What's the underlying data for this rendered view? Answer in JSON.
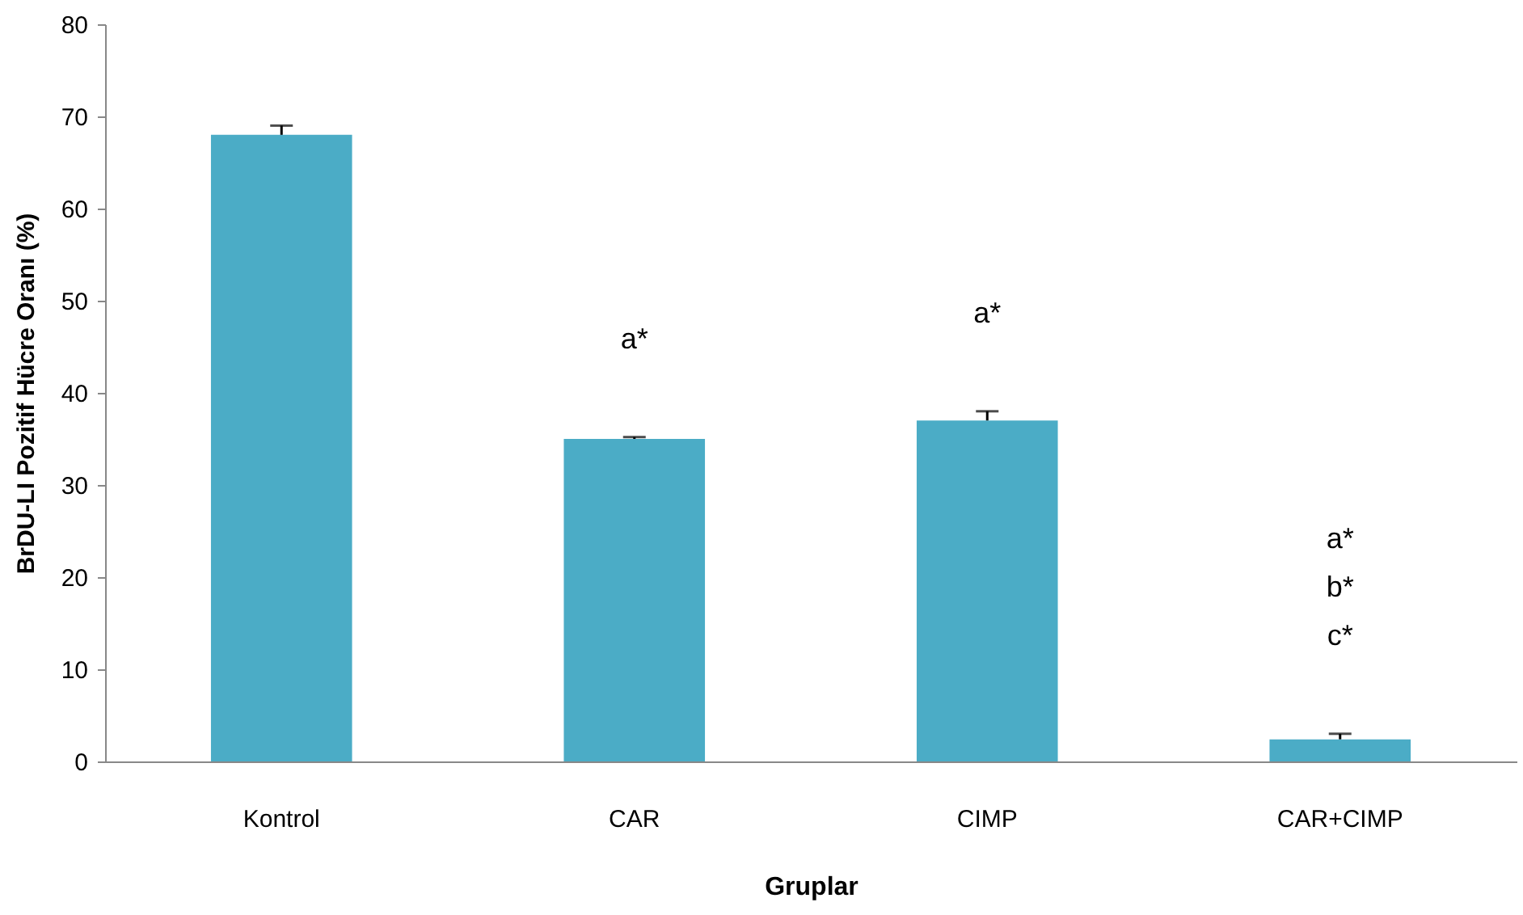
{
  "chart_data": {
    "type": "bar",
    "xlabel": "Gruplar",
    "ylabel": "BrDU-LI Pozitif Hücre Oranı (%)",
    "categories": [
      "Kontrol",
      "CAR",
      "CIMP",
      "CAR+CIMP"
    ],
    "values": [
      68,
      35,
      37,
      2.4
    ],
    "color": "#4bacc6",
    "errors": [
      [
        68,
        69
      ],
      [
        35,
        35.2
      ],
      [
        37,
        38
      ],
      [
        2.4,
        3
      ]
    ],
    "ylim": [
      0,
      80
    ],
    "yticks": [
      0,
      10,
      20,
      30,
      40,
      50,
      60,
      70,
      80
    ],
    "grid": false,
    "annotations": [
      "a*",
      "a*",
      "a*",
      "b*",
      "c*"
    ]
  }
}
